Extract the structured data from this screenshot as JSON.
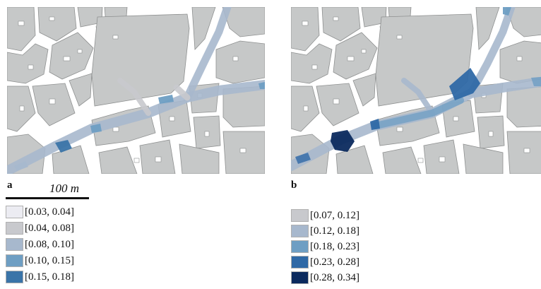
{
  "panels": [
    {
      "label": "a"
    },
    {
      "label": "b"
    }
  ],
  "scale_bar": {
    "label": "100 m"
  },
  "colors": {
    "building": "#c6c8c8",
    "building_outline": "#8e9090",
    "background": "#ffffff"
  },
  "legend_a": [
    {
      "label": "[0.03, 0.04]",
      "color": "#ececf2"
    },
    {
      "label": "[0.04, 0.08]",
      "color": "#c8c9cd"
    },
    {
      "label": "[0.08, 0.10]",
      "color": "#a7b8cd"
    },
    {
      "label": "[0.10, 0.15]",
      "color": "#6e9ec3"
    },
    {
      "label": "[0.15, 0.18]",
      "color": "#3a74a8"
    }
  ],
  "legend_b": [
    {
      "label": "[0.07, 0.12]",
      "color": "#c8c9cd"
    },
    {
      "label": "[0.12, 0.18]",
      "color": "#a7b8cd"
    },
    {
      "label": "[0.18, 0.23]",
      "color": "#6e9ec3"
    },
    {
      "label": "[0.23, 0.28]",
      "color": "#2f69a6"
    },
    {
      "label": "[0.28, 0.34]",
      "color": "#0b2a5e"
    }
  ]
}
